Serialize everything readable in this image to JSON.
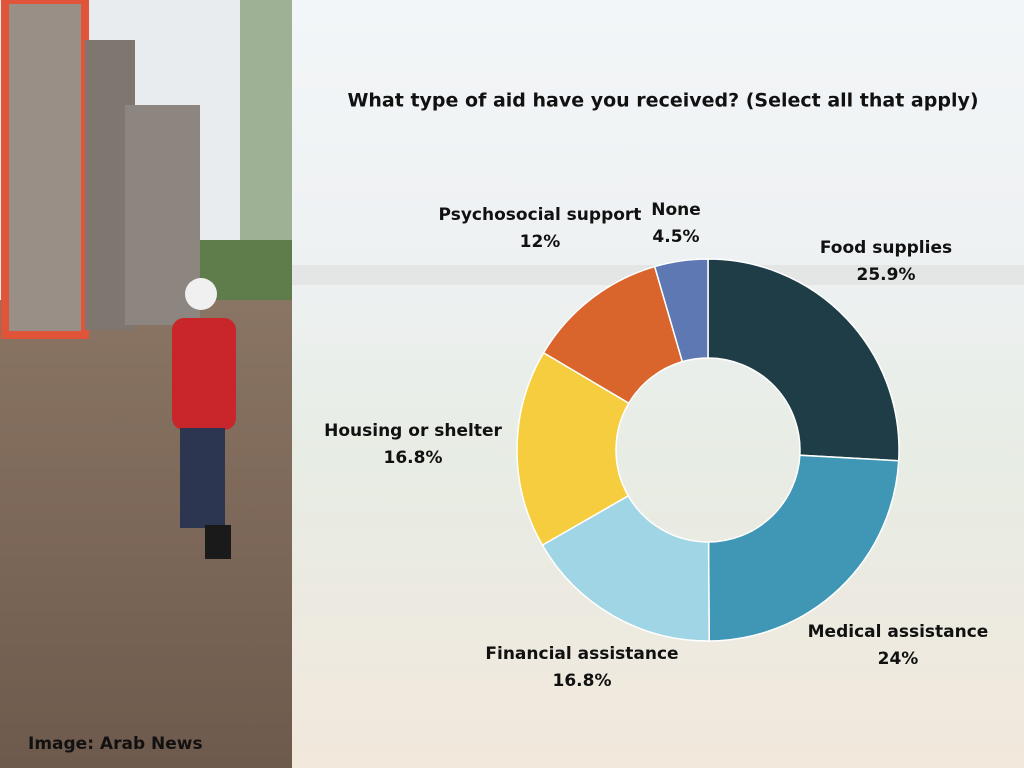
{
  "chart_data": {
    "type": "donut",
    "title": "What type of aid have you received? (Select all that apply)",
    "categories": [
      "Food supplies",
      "Medical assistance",
      "Financial assistance",
      "Housing or shelter",
      "Psychosocial support",
      "None"
    ],
    "values": [
      25.9,
      24,
      16.8,
      16.8,
      12,
      4.5
    ],
    "value_labels": [
      "25.9%",
      "24%",
      "16.8%",
      "16.8%",
      "12%",
      "4.5%"
    ],
    "colors": [
      "#1e3d47",
      "#3f97b5",
      "#9fd5e4",
      "#f6cd3f",
      "#d9642c",
      "#5e78b4"
    ]
  },
  "image_credit": "Image: Arab News"
}
